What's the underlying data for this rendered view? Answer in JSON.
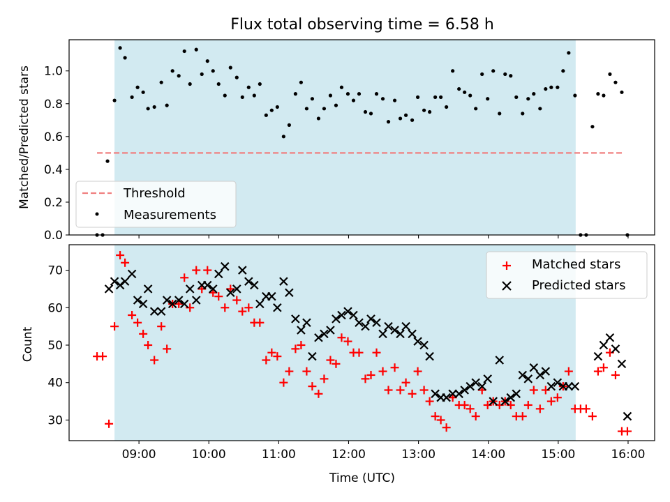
{
  "figure": {
    "title": "Flux total observing time = 6.58 h",
    "xlabel": "Time (UTC)",
    "xticks": [
      {
        "t": 9,
        "label": "09:00"
      },
      {
        "t": 10,
        "label": "10:00"
      },
      {
        "t": 11,
        "label": "11:00"
      },
      {
        "t": 12,
        "label": "12:00"
      },
      {
        "t": 13,
        "label": "13:00"
      },
      {
        "t": 14,
        "label": "14:00"
      },
      {
        "t": 15,
        "label": "15:00"
      },
      {
        "t": 16,
        "label": "16:00"
      }
    ],
    "observing_window": {
      "start": 8.65,
      "end": 15.25,
      "color": "#add8e6"
    }
  },
  "chart_data": [
    {
      "type": "scatter",
      "ylabel": "Matched/Predicted stars",
      "xlim": [
        8.0,
        16.38
      ],
      "ylim": [
        0.0,
        1.19
      ],
      "yticks": [
        {
          "v": 0.0,
          "label": "0.0"
        },
        {
          "v": 0.2,
          "label": "0.2"
        },
        {
          "v": 0.4,
          "label": "0.4"
        },
        {
          "v": 0.6,
          "label": "0.6"
        },
        {
          "v": 0.8,
          "label": "0.8"
        },
        {
          "v": 1.0,
          "label": "1.0"
        }
      ],
      "legend": {
        "position": "lower-left",
        "entries": [
          "Threshold",
          "Measurements"
        ]
      },
      "threshold": {
        "name": "Threshold",
        "value": 0.5,
        "x_range": [
          8.4,
          15.95
        ],
        "color": "#f08080"
      },
      "series": [
        {
          "name": "Measurements",
          "color": "#000000",
          "x": [
            8.4,
            8.48,
            8.55,
            8.65,
            8.73,
            8.8,
            8.9,
            8.98,
            9.06,
            9.13,
            9.22,
            9.32,
            9.4,
            9.48,
            9.57,
            9.65,
            9.73,
            9.82,
            9.9,
            9.98,
            10.06,
            10.14,
            10.23,
            10.31,
            10.4,
            10.48,
            10.57,
            10.65,
            10.73,
            10.82,
            10.9,
            10.98,
            11.07,
            11.15,
            11.24,
            11.32,
            11.4,
            11.48,
            11.57,
            11.65,
            11.74,
            11.82,
            11.9,
            11.99,
            12.07,
            12.15,
            12.24,
            12.32,
            12.4,
            12.49,
            12.57,
            12.66,
            12.74,
            12.82,
            12.91,
            12.99,
            13.08,
            13.16,
            13.24,
            13.32,
            13.4,
            13.49,
            13.58,
            13.66,
            13.74,
            13.82,
            13.91,
            13.99,
            14.07,
            14.16,
            14.24,
            14.32,
            14.4,
            14.49,
            14.57,
            14.65,
            14.74,
            14.82,
            14.9,
            14.99,
            15.07,
            15.15,
            15.24,
            15.32,
            15.4,
            15.49,
            15.57,
            15.65,
            15.74,
            15.82,
            15.91,
            15.99
          ],
          "y": [
            0.0,
            0.0,
            0.45,
            0.82,
            1.14,
            1.08,
            0.84,
            0.9,
            0.87,
            0.77,
            0.78,
            0.93,
            0.79,
            1.0,
            0.97,
            1.12,
            0.92,
            1.13,
            0.98,
            1.06,
            1.0,
            0.92,
            0.85,
            1.02,
            0.96,
            0.84,
            0.9,
            0.85,
            0.92,
            0.73,
            0.76,
            0.78,
            0.6,
            0.67,
            0.86,
            0.93,
            0.77,
            0.83,
            0.71,
            0.77,
            0.85,
            0.79,
            0.9,
            0.86,
            0.82,
            0.86,
            0.75,
            0.74,
            0.86,
            0.83,
            0.69,
            0.82,
            0.71,
            0.73,
            0.7,
            0.84,
            0.76,
            0.75,
            0.84,
            0.84,
            0.78,
            1.0,
            0.89,
            0.87,
            0.85,
            0.77,
            0.98,
            0.83,
            1.0,
            0.74,
            0.98,
            0.97,
            0.84,
            0.74,
            0.83,
            0.86,
            0.77,
            0.89,
            0.9,
            0.9,
            1.0,
            1.11,
            0.85,
            0.0,
            0.0,
            0.66,
            0.86,
            0.85,
            0.98,
            0.93,
            0.87,
            0.0
          ]
        }
      ]
    },
    {
      "type": "scatter",
      "ylabel": "Count",
      "xlim": [
        8.0,
        16.38
      ],
      "ylim": [
        24.5,
        76.8
      ],
      "yticks": [
        {
          "v": 30,
          "label": "30"
        },
        {
          "v": 40,
          "label": "40"
        },
        {
          "v": 50,
          "label": "50"
        },
        {
          "v": 60,
          "label": "60"
        },
        {
          "v": 70,
          "label": "70"
        }
      ],
      "legend": {
        "position": "upper-right",
        "entries": [
          "Matched stars",
          "Predicted stars"
        ]
      },
      "series": [
        {
          "name": "Matched stars",
          "marker": "+",
          "color": "#ff0000",
          "x": [
            8.4,
            8.48,
            8.57,
            8.65,
            8.73,
            8.8,
            8.9,
            8.98,
            9.06,
            9.13,
            9.22,
            9.32,
            9.4,
            9.48,
            9.57,
            9.65,
            9.73,
            9.82,
            9.9,
            9.98,
            10.06,
            10.14,
            10.23,
            10.31,
            10.4,
            10.48,
            10.57,
            10.65,
            10.73,
            10.82,
            10.9,
            10.98,
            11.07,
            11.15,
            11.24,
            11.32,
            11.4,
            11.48,
            11.57,
            11.65,
            11.74,
            11.82,
            11.9,
            11.99,
            12.07,
            12.15,
            12.24,
            12.32,
            12.4,
            12.49,
            12.57,
            12.66,
            12.74,
            12.82,
            12.91,
            12.99,
            13.08,
            13.16,
            13.24,
            13.32,
            13.4,
            13.49,
            13.58,
            13.66,
            13.74,
            13.82,
            13.91,
            13.99,
            14.07,
            14.16,
            14.24,
            14.32,
            14.4,
            14.49,
            14.57,
            14.65,
            14.74,
            14.82,
            14.9,
            14.99,
            15.07,
            15.15,
            15.24,
            15.32,
            15.4,
            15.49,
            15.57,
            15.65,
            15.74,
            15.82,
            15.91,
            15.99
          ],
          "y": [
            47,
            47,
            29,
            55,
            74,
            72,
            58,
            56,
            53,
            50,
            46,
            55,
            49,
            61,
            61,
            68,
            60,
            70,
            65,
            70,
            64,
            63,
            60,
            65,
            62,
            59,
            60,
            56,
            56,
            46,
            48,
            47,
            40,
            43,
            49,
            50,
            43,
            39,
            37,
            41,
            46,
            45,
            52,
            51,
            48,
            48,
            41,
            42,
            48,
            43,
            38,
            44,
            38,
            40,
            37,
            43,
            38,
            35,
            31,
            30,
            28,
            36,
            34,
            34,
            33,
            31,
            38,
            34,
            35,
            34,
            35,
            34,
            31,
            31,
            34,
            38,
            33,
            38,
            35,
            36,
            39,
            43,
            33,
            33,
            33,
            31,
            43,
            44,
            48,
            42,
            27,
            27
          ]
        },
        {
          "name": "Predicted stars",
          "marker": "x",
          "color": "#000000",
          "x": [
            8.57,
            8.65,
            8.73,
            8.8,
            8.9,
            8.98,
            9.06,
            9.13,
            9.22,
            9.32,
            9.4,
            9.48,
            9.57,
            9.65,
            9.73,
            9.82,
            9.9,
            9.98,
            10.06,
            10.14,
            10.23,
            10.31,
            10.4,
            10.48,
            10.57,
            10.65,
            10.73,
            10.82,
            10.9,
            10.98,
            11.07,
            11.15,
            11.24,
            11.32,
            11.4,
            11.48,
            11.57,
            11.65,
            11.74,
            11.82,
            11.9,
            11.99,
            12.07,
            12.15,
            12.24,
            12.32,
            12.4,
            12.49,
            12.57,
            12.66,
            12.74,
            12.82,
            12.91,
            12.99,
            13.08,
            13.16,
            13.24,
            13.32,
            13.4,
            13.49,
            13.58,
            13.66,
            13.74,
            13.82,
            13.91,
            13.99,
            14.07,
            14.16,
            14.24,
            14.32,
            14.4,
            14.49,
            14.57,
            14.65,
            14.74,
            14.82,
            14.9,
            14.99,
            15.07,
            15.15,
            15.24,
            15.57,
            15.65,
            15.74,
            15.82,
            15.91,
            15.99
          ],
          "y": [
            65,
            67,
            66,
            67,
            69,
            62,
            61,
            65,
            59,
            59,
            62,
            61,
            62,
            61,
            65,
            62,
            66,
            66,
            65,
            69,
            71,
            64,
            65,
            70,
            67,
            66,
            61,
            63,
            63,
            60,
            67,
            64,
            57,
            54,
            56,
            47,
            52,
            53,
            54,
            57,
            58,
            59,
            58,
            56,
            55,
            57,
            56,
            53,
            55,
            54,
            53,
            55,
            53,
            51,
            50,
            47,
            37,
            36,
            36,
            37,
            37,
            38,
            39,
            40,
            39,
            41,
            35,
            46,
            35,
            36,
            37,
            42,
            41,
            44,
            42,
            43,
            39,
            40,
            39,
            39,
            39,
            47,
            50,
            52,
            49,
            45,
            31
          ]
        }
      ]
    }
  ]
}
